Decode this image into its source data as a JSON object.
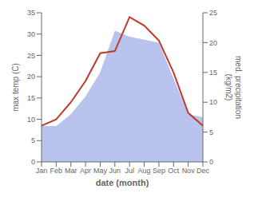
{
  "chart_data": {
    "type": "line",
    "xlabel": "date (month)",
    "ylabel": "max temp (C)",
    "y2label": "med. precipitation\n(kg/m2)",
    "categories": [
      "Jan",
      "Feb",
      "Mar",
      "Apr",
      "May",
      "Jun",
      "Jul",
      "Aug",
      "Sep",
      "Oct",
      "Nov",
      "Dec"
    ],
    "series": [
      {
        "type": "area",
        "color": "#b8c4ee",
        "axis": "y2",
        "values": [
          6.0,
          6.0,
          8.0,
          11.0,
          15.0,
          22.0,
          21.0,
          20.5,
          20.0,
          14.0,
          8.0,
          7.5
        ]
      },
      {
        "type": "line",
        "color": "#c0392b",
        "values": [
          8.5,
          10.0,
          14.0,
          19.0,
          25.5,
          26.0,
          34.0,
          32.0,
          28.5,
          21.0,
          11.5,
          8.5
        ]
      }
    ],
    "ylim": [
      0,
      35
    ],
    "yticks": [
      0,
      5,
      10,
      15,
      20,
      25,
      30,
      35
    ],
    "y2lim": [
      0,
      25
    ],
    "y2ticks": [
      0,
      5,
      10,
      15,
      20,
      25
    ],
    "grid": false
  }
}
